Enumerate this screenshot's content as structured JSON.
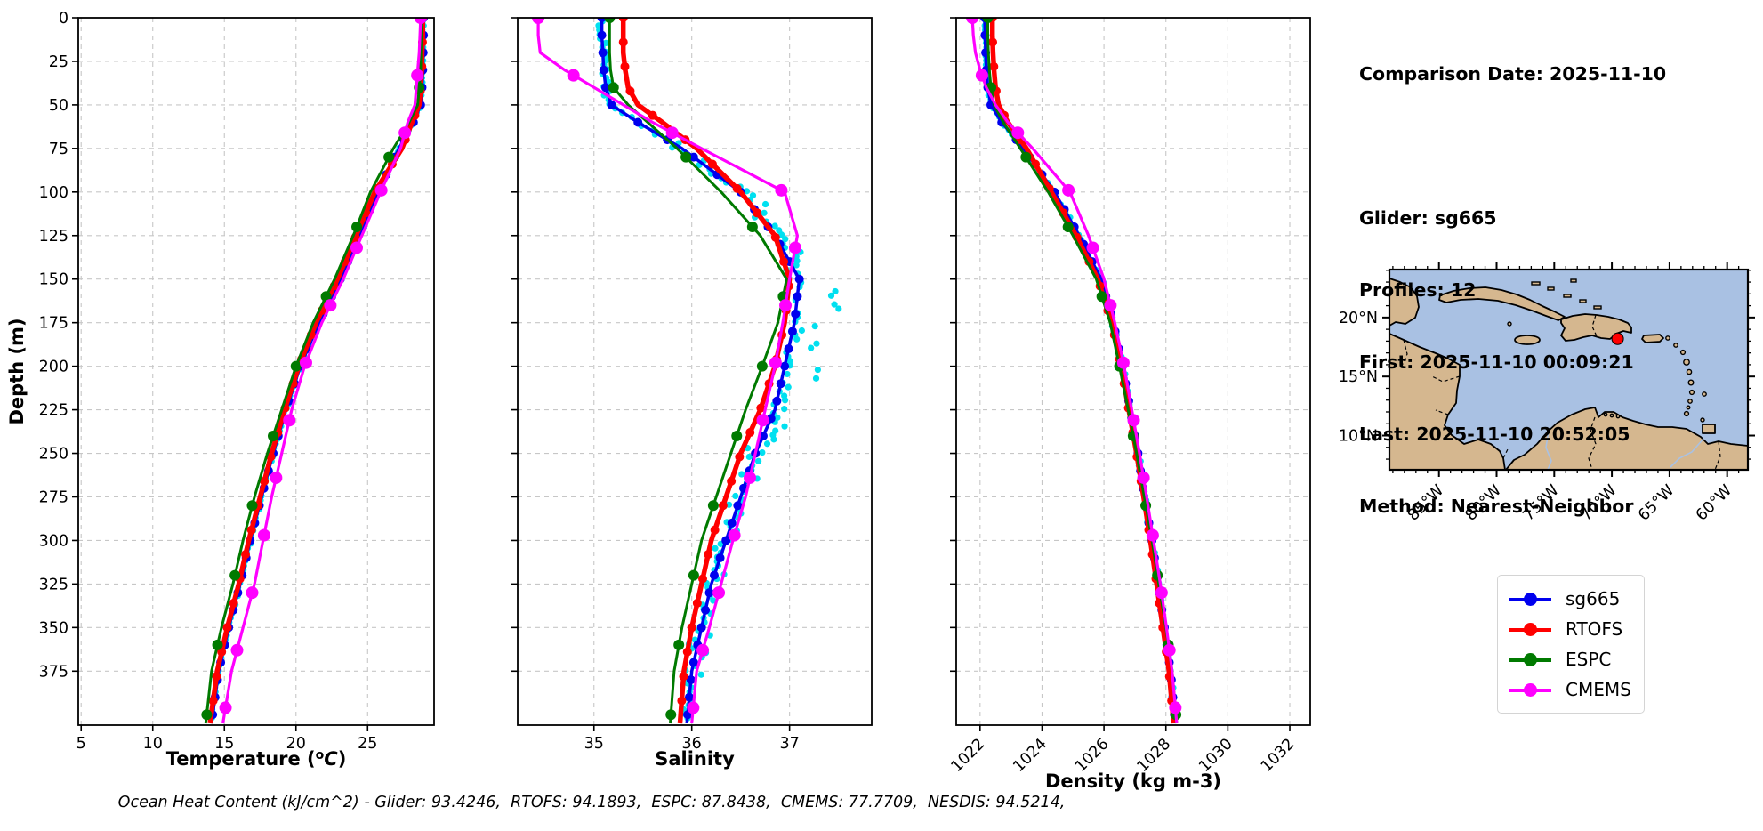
{
  "header": {
    "comparison_date": "Comparison Date: 2025-11-10",
    "glider": "Glider: sg665",
    "profiles": "Profiles: 12",
    "first": "First: 2025-11-10 00:09:21",
    "last": "Last: 2025-11-10 20:52:05",
    "method": "Method: Nearest-Neighbor"
  },
  "caption": "Ocean Heat Content (kJ/cm^2) - Glider: 93.4246,  RTOFS: 94.1893,  ESPC: 87.8438,  CMEMS: 77.7709,  NESDIS: 94.5214,",
  "legend": {
    "items": [
      {
        "label": "sg665",
        "color": "#0000ee"
      },
      {
        "label": "RTOFS",
        "color": "#ff0000"
      },
      {
        "label": "ESPC",
        "color": "#007a00"
      },
      {
        "label": "CMEMS",
        "color": "#ff00ff"
      }
    ]
  },
  "colors": {
    "glider_raw_scatter": "#00e0f0",
    "grid": "#c7c7c7",
    "spine": "#000000",
    "map_ocean": "#a9c1e3",
    "map_land": "#d5b78f",
    "marker_red": "#ff0000"
  },
  "chart_data": [
    {
      "type": "line",
      "xlabel": "Temperature (°C)",
      "xlabel_rich": {
        "prefix": "Temperature (",
        "sup": "o",
        "italic": "C",
        "suffix": ")"
      },
      "ylabel": "Depth (m)",
      "xlim": [
        4.8,
        29.64
      ],
      "xticks": [
        5,
        10,
        15,
        20,
        25
      ],
      "ylim": [
        0,
        406
      ],
      "yticks": [
        0,
        25,
        50,
        75,
        100,
        125,
        150,
        175,
        200,
        225,
        250,
        275,
        300,
        325,
        350,
        375
      ],
      "rotate_xticklabels": false,
      "show_depth_labels": true,
      "grid": true,
      "legend_position": "outside-right",
      "depths": [
        0,
        10,
        20,
        30,
        40,
        50,
        60,
        75,
        100,
        125,
        150,
        175,
        200,
        225,
        250,
        275,
        300,
        325,
        350,
        375,
        405
      ],
      "series": [
        {
          "name": "sg665",
          "color": "#0000ee",
          "line_width": 3.5,
          "marker_radius": 5,
          "marker_step_m": 10,
          "values": [
            28.9,
            28.9,
            28.88,
            28.85,
            28.8,
            28.7,
            28.2,
            27.2,
            25.7,
            24.4,
            23.1,
            21.6,
            20.3,
            19.3,
            18.4,
            17.6,
            16.8,
            16.1,
            15.3,
            14.6,
            14.1
          ]
        },
        {
          "name": "RTOFS",
          "color": "#ff0000",
          "line_width": 5.5,
          "marker_radius": 5,
          "marker_step_m": 14,
          "values": [
            28.85,
            28.85,
            28.8,
            28.78,
            28.7,
            28.6,
            28.1,
            27.4,
            25.5,
            24.2,
            22.9,
            21.4,
            20.2,
            19.2,
            18.3,
            17.5,
            16.7,
            16.0,
            15.2,
            14.5,
            14.0
          ]
        },
        {
          "name": "ESPC",
          "color": "#007a00",
          "line_width": 3,
          "marker_radius": 6,
          "marker_step_m": 40,
          "values": [
            28.75,
            28.75,
            28.72,
            28.7,
            28.6,
            28.5,
            27.9,
            26.8,
            25.2,
            24.0,
            22.7,
            21.2,
            20.0,
            19.0,
            18.0,
            17.1,
            16.3,
            15.6,
            14.8,
            14.1,
            13.7
          ]
        },
        {
          "name": "CMEMS",
          "color": "#ff00ff",
          "line_width": 3.2,
          "marker_radius": 7,
          "marker_step_m": 33,
          "values": [
            28.7,
            28.65,
            28.6,
            28.5,
            28.4,
            28.3,
            27.8,
            27.3,
            25.9,
            24.6,
            23.3,
            21.8,
            20.6,
            19.7,
            19.0,
            18.3,
            17.7,
            17.1,
            16.3,
            15.5,
            14.9
          ]
        }
      ],
      "scatter": {
        "name": "glider-raw-obs",
        "base": "sg665",
        "dx": 0.13,
        "tail": 0,
        "point_r": 3.0,
        "step_m": 2.5
      }
    },
    {
      "type": "line",
      "xlabel": "Salinity",
      "ylabel": "",
      "xlim": [
        34.22,
        37.84
      ],
      "xticks": [
        35,
        36,
        37
      ],
      "ylim": [
        0,
        406
      ],
      "yticks": [
        0,
        25,
        50,
        75,
        100,
        125,
        150,
        175,
        200,
        225,
        250,
        275,
        300,
        325,
        350,
        375
      ],
      "rotate_xticklabels": false,
      "show_depth_labels": false,
      "grid": true,
      "depths": [
        0,
        10,
        20,
        30,
        40,
        50,
        60,
        75,
        100,
        125,
        150,
        175,
        200,
        225,
        250,
        275,
        300,
        325,
        350,
        375,
        405
      ],
      "series": [
        {
          "name": "sg665",
          "color": "#0000ee",
          "line_width": 3.5,
          "marker_radius": 5,
          "marker_step_m": 10,
          "values": [
            35.08,
            35.08,
            35.09,
            35.1,
            35.12,
            35.18,
            35.45,
            35.9,
            36.5,
            36.85,
            37.1,
            37.05,
            36.95,
            36.85,
            36.65,
            36.5,
            36.35,
            36.2,
            36.1,
            36.0,
            35.95
          ]
        },
        {
          "name": "RTOFS",
          "color": "#ff0000",
          "line_width": 5.5,
          "marker_radius": 5,
          "marker_step_m": 14,
          "values": [
            35.3,
            35.3,
            35.3,
            35.32,
            35.35,
            35.45,
            35.7,
            36.05,
            36.5,
            36.85,
            37.0,
            36.95,
            36.85,
            36.7,
            36.5,
            36.35,
            36.2,
            36.1,
            36.0,
            35.92,
            35.88
          ]
        },
        {
          "name": "ESPC",
          "color": "#007a00",
          "line_width": 3,
          "marker_radius": 6,
          "marker_step_m": 40,
          "values": [
            35.16,
            35.16,
            35.16,
            35.17,
            35.2,
            35.35,
            35.55,
            35.85,
            36.3,
            36.7,
            36.97,
            36.88,
            36.72,
            36.55,
            36.4,
            36.25,
            36.1,
            36.0,
            35.9,
            35.82,
            35.78
          ]
        },
        {
          "name": "CMEMS",
          "color": "#ff00ff",
          "line_width": 3.2,
          "marker_radius": 7,
          "marker_step_m": 33,
          "values": [
            34.43,
            34.43,
            34.45,
            34.7,
            35.0,
            35.3,
            35.6,
            36.1,
            36.95,
            37.08,
            37.0,
            36.93,
            36.85,
            36.75,
            36.65,
            36.55,
            36.42,
            36.3,
            36.18,
            36.05,
            36.0
          ]
        }
      ],
      "scatter": {
        "name": "glider-raw-obs",
        "base": "sg665",
        "dx": 0.12,
        "tail": 0.55,
        "tail_range": [
          95,
          265
        ],
        "point_r": 3.6,
        "step_m": 2.5
      }
    },
    {
      "type": "line",
      "xlabel": "Density (kg m-3)",
      "ylabel": "",
      "xlim": [
        1021.23,
        1032.66
      ],
      "xticks": [
        1022,
        1024,
        1026,
        1028,
        1030,
        1032
      ],
      "ylim": [
        0,
        406
      ],
      "yticks": [
        0,
        25,
        50,
        75,
        100,
        125,
        150,
        175,
        200,
        225,
        250,
        275,
        300,
        325,
        350,
        375
      ],
      "rotate_xticklabels": true,
      "show_depth_labels": false,
      "grid": true,
      "depths": [
        0,
        10,
        20,
        30,
        40,
        50,
        60,
        75,
        100,
        125,
        150,
        175,
        200,
        225,
        250,
        275,
        300,
        325,
        350,
        375,
        405
      ],
      "series": [
        {
          "name": "sg665",
          "color": "#0000ee",
          "line_width": 3.5,
          "marker_radius": 5,
          "marker_step_m": 10,
          "values": [
            1022.15,
            1022.16,
            1022.18,
            1022.2,
            1022.25,
            1022.35,
            1022.7,
            1023.4,
            1024.4,
            1025.2,
            1025.9,
            1026.3,
            1026.6,
            1026.85,
            1027.1,
            1027.3,
            1027.55,
            1027.75,
            1027.95,
            1028.15,
            1028.3
          ]
        },
        {
          "name": "RTOFS",
          "color": "#ff0000",
          "line_width": 5.5,
          "marker_radius": 5,
          "marker_step_m": 14,
          "values": [
            1022.4,
            1022.4,
            1022.42,
            1022.45,
            1022.5,
            1022.6,
            1022.9,
            1023.5,
            1024.3,
            1025.1,
            1025.8,
            1026.25,
            1026.55,
            1026.8,
            1027.05,
            1027.28,
            1027.5,
            1027.7,
            1027.9,
            1028.1,
            1028.25
          ]
        },
        {
          "name": "ESPC",
          "color": "#007a00",
          "line_width": 3,
          "marker_radius": 6,
          "marker_step_m": 40,
          "values": [
            1022.25,
            1022.25,
            1022.27,
            1022.3,
            1022.35,
            1022.45,
            1022.75,
            1023.3,
            1024.2,
            1025.0,
            1025.75,
            1026.2,
            1026.5,
            1026.78,
            1027.05,
            1027.3,
            1027.55,
            1027.77,
            1028.0,
            1028.2,
            1028.35
          ]
        },
        {
          "name": "CMEMS",
          "color": "#ff00ff",
          "line_width": 3.2,
          "marker_radius": 7,
          "marker_step_m": 33,
          "values": [
            1021.75,
            1021.78,
            1021.85,
            1022.0,
            1022.2,
            1022.5,
            1022.9,
            1023.7,
            1024.9,
            1025.5,
            1026.0,
            1026.35,
            1026.65,
            1026.9,
            1027.15,
            1027.38,
            1027.6,
            1027.82,
            1028.02,
            1028.2,
            1028.35
          ]
        }
      ],
      "scatter": {
        "name": "glider-raw-obs",
        "base": "sg665",
        "dx": 0.08,
        "point_r": 3.2,
        "step_m": 2.5
      }
    }
  ],
  "map": {
    "extent": {
      "lon_min": -89.3,
      "lon_max": -58.2,
      "lat_min": 7.1,
      "lat_max": 24.06
    },
    "lat_ticks": [
      {
        "label": "20°N",
        "value": 20
      },
      {
        "label": "15°N",
        "value": 15
      },
      {
        "label": "10°N",
        "value": 10
      }
    ],
    "lon_ticks": [
      {
        "label": "85°W",
        "value": -85
      },
      {
        "label": "80°W",
        "value": -80
      },
      {
        "label": "75°W",
        "value": -75
      },
      {
        "label": "70°W",
        "value": -70
      },
      {
        "label": "65°W",
        "value": -65
      },
      {
        "label": "60°W",
        "value": -60
      }
    ],
    "marker": {
      "lon": -69.5,
      "lat": 18.2,
      "color": "#ff0000"
    }
  }
}
